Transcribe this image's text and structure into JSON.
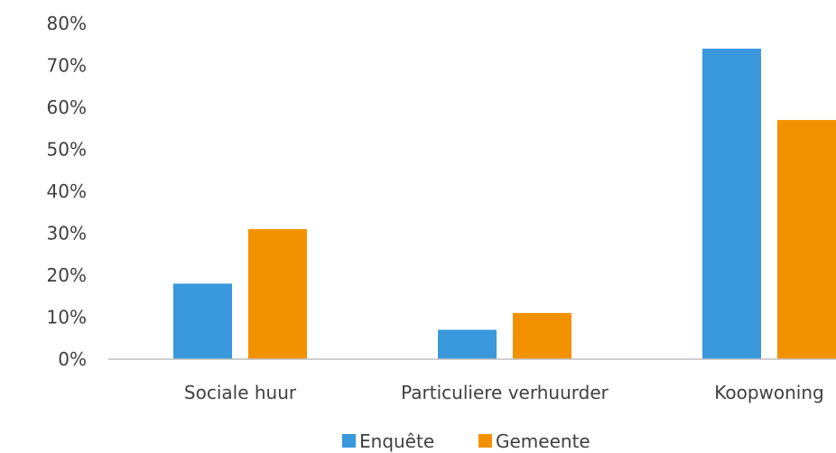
{
  "chart_data": {
    "type": "bar",
    "categories": [
      "Sociale huur",
      "Particuliere verhuurder",
      "Koopwoning"
    ],
    "series": [
      {
        "name": "Enquête",
        "values": [
          18,
          7,
          74
        ],
        "color": "#3a98dc"
      },
      {
        "name": "Gemeente",
        "values": [
          31,
          11,
          57
        ],
        "color": "#f39200"
      }
    ],
    "ylim": [
      0,
      80
    ],
    "yticks": [
      "0%",
      "10%",
      "20%",
      "30%",
      "40%",
      "50%",
      "60%",
      "70%",
      "80%"
    ],
    "grid": false,
    "legend_position": "bottom"
  }
}
